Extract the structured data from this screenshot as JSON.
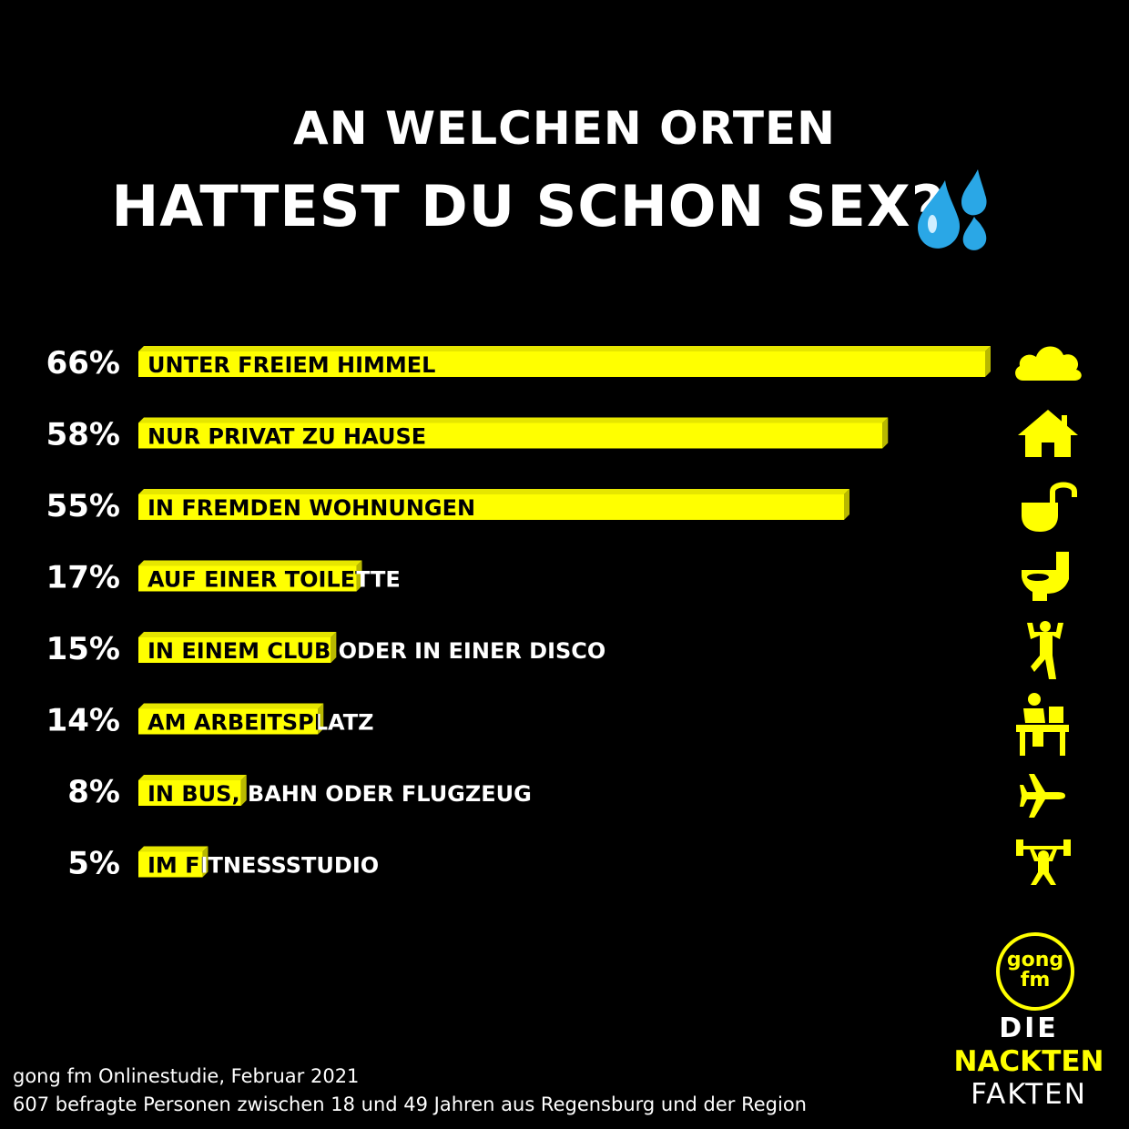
{
  "title_line1": "AN WELCHEN ORTEN",
  "title_line2": "HATTEST DU SCHON SEX?",
  "accent_color": "#ffff00",
  "chart_data": {
    "type": "bar",
    "orientation": "horizontal",
    "categories": [
      "UNTER FREIEM HIMMEL",
      "NUR PRIVAT ZU HAUSE",
      "IN FREMDEN WOHNUNGEN",
      "AUF EINER TOILETTE",
      "IN EINEM CLUB ODER IN EINER DISCO",
      "AM ARBEITSPLATZ",
      "IN BUS, BAHN ODER FLUGZEUG",
      "IM FITNESSSTUDIO"
    ],
    "values": [
      66,
      58,
      55,
      17,
      15,
      14,
      8,
      5
    ],
    "value_labels": [
      "66%",
      "58%",
      "55%",
      "17%",
      "15%",
      "14%",
      "8%",
      "5%"
    ],
    "icons": [
      "cloud-icon",
      "house-icon",
      "open-lock-icon",
      "toilet-icon",
      "dancer-icon",
      "desk-worker-icon",
      "airplane-icon",
      "weightlifter-icon"
    ],
    "xlim": [
      0,
      66
    ],
    "grid": false,
    "legend": "none"
  },
  "logo": {
    "top": "gong",
    "bottom": "fm"
  },
  "brand": {
    "line1": "DIE",
    "line2": "NACKTEN",
    "line3": "FAKTEN"
  },
  "source": {
    "line1": "gong fm Onlinestudie, Februar 2021",
    "line2": "607 befragte Personen zwischen 18 und 49 Jahren aus Regensburg und der Region"
  }
}
